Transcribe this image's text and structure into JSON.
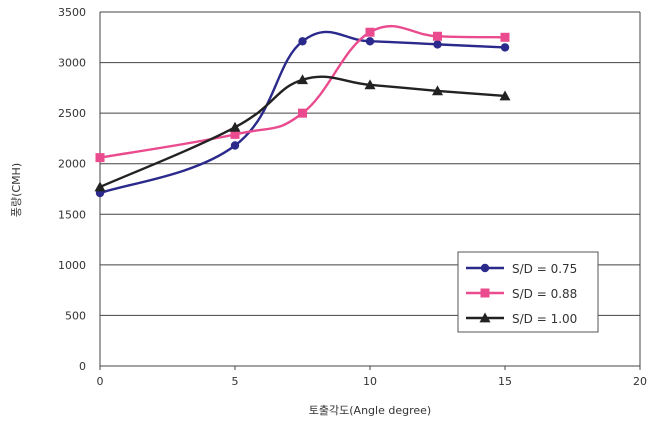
{
  "chart_data": {
    "type": "line",
    "title": "",
    "xlabel": "토출각도(Angle degree)",
    "ylabel": "풍량(CMH)",
    "xlim": [
      0,
      20
    ],
    "ylim": [
      0,
      3500
    ],
    "x_ticks": [
      "0",
      "5",
      "10",
      "15",
      "20"
    ],
    "y_ticks": [
      "0",
      "500",
      "1000",
      "1500",
      "2000",
      "2500",
      "3000",
      "3500"
    ],
    "grid": "horizontal",
    "legend_position": "bottom-right",
    "series": [
      {
        "name": "S/D = 0.75",
        "color": "#2b2a8c",
        "marker": "circle",
        "x": [
          0,
          5,
          7.5,
          10,
          12.5,
          15
        ],
        "values": [
          1710,
          2180,
          3210,
          3210,
          3180,
          3150
        ]
      },
      {
        "name": "S/D = 0.88",
        "color": "#e94b8e",
        "marker": "square",
        "x": [
          0,
          5,
          7.5,
          10,
          12.5,
          15
        ],
        "values": [
          2060,
          2290,
          2500,
          3300,
          3260,
          3250
        ]
      },
      {
        "name": "S/D = 1.00",
        "color": "#222222",
        "marker": "triangle",
        "x": [
          0,
          5,
          7.5,
          10,
          12.5,
          15
        ],
        "values": [
          1770,
          2360,
          2830,
          2780,
          2720,
          2670
        ]
      }
    ]
  }
}
